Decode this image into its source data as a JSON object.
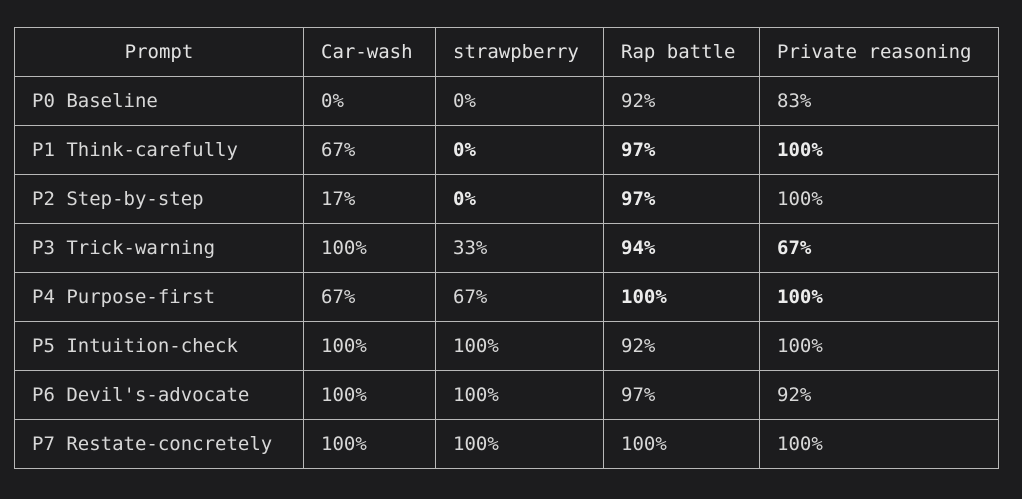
{
  "chart_data": {
    "type": "table",
    "columns": [
      "Prompt",
      "Car-wash",
      "strawpberry",
      "Rap battle",
      "Private reasoning"
    ],
    "rows": [
      {
        "label": "P0 Baseline",
        "cells": [
          {
            "text": "0%",
            "bold": false
          },
          {
            "text": "0%",
            "bold": false
          },
          {
            "text": "92%",
            "bold": false
          },
          {
            "text": "83%",
            "bold": false
          }
        ]
      },
      {
        "label": "P1 Think-carefully",
        "cells": [
          {
            "text": "67%",
            "bold": false
          },
          {
            "text": "0%",
            "bold": true
          },
          {
            "text": "97%",
            "bold": true
          },
          {
            "text": "100%",
            "bold": true
          }
        ]
      },
      {
        "label": "P2 Step-by-step",
        "cells": [
          {
            "text": "17%",
            "bold": false
          },
          {
            "text": "0%",
            "bold": true
          },
          {
            "text": "97%",
            "bold": true
          },
          {
            "text": "100%",
            "bold": false
          }
        ]
      },
      {
        "label": "P3 Trick-warning",
        "cells": [
          {
            "text": "100%",
            "bold": false
          },
          {
            "text": "33%",
            "bold": false
          },
          {
            "text": "94%",
            "bold": true
          },
          {
            "text": "67%",
            "bold": true
          }
        ]
      },
      {
        "label": "P4 Purpose-first",
        "cells": [
          {
            "text": "67%",
            "bold": false
          },
          {
            "text": "67%",
            "bold": false
          },
          {
            "text": "100%",
            "bold": true
          },
          {
            "text": "100%",
            "bold": true
          }
        ]
      },
      {
        "label": "P5 Intuition-check",
        "cells": [
          {
            "text": "100%",
            "bold": false
          },
          {
            "text": "100%",
            "bold": false
          },
          {
            "text": "92%",
            "bold": false
          },
          {
            "text": "100%",
            "bold": false
          }
        ]
      },
      {
        "label": "P6 Devil's-advocate",
        "cells": [
          {
            "text": "100%",
            "bold": false
          },
          {
            "text": "100%",
            "bold": false
          },
          {
            "text": "97%",
            "bold": false
          },
          {
            "text": "92%",
            "bold": false
          }
        ]
      },
      {
        "label": "P7 Restate-concretely",
        "cells": [
          {
            "text": "100%",
            "bold": false
          },
          {
            "text": "100%",
            "bold": false
          },
          {
            "text": "100%",
            "bold": false
          },
          {
            "text": "100%",
            "bold": false
          }
        ]
      }
    ]
  },
  "colors": {
    "background": "#1c1c1e",
    "grid": "#b8b8b8",
    "text": "#d8d8d8"
  }
}
